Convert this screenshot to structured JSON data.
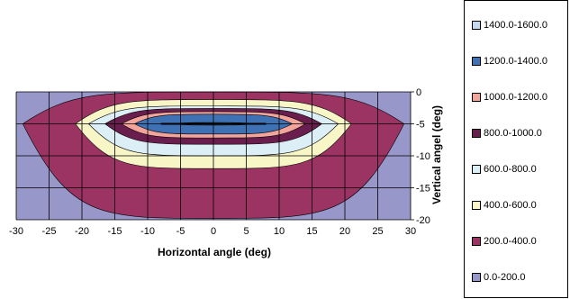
{
  "chart_data": {
    "type": "contour",
    "xlabel": "Horizontal angle (deg)",
    "ylabel": "Vertical angel (deg)",
    "xlim": [
      -30,
      30
    ],
    "ylim": [
      -20,
      0
    ],
    "x_ticks": [
      "-30",
      "-25",
      "-20",
      "-15",
      "-10",
      "-5",
      "0",
      "5",
      "10",
      "15",
      "20",
      "25",
      "30"
    ],
    "y_ticks": [
      "0",
      "-5",
      "-10",
      "-15",
      "-20"
    ],
    "grid": true,
    "legend_position": "right",
    "legend": [
      {
        "label": "1400.0-1600.0",
        "color": "#c6d9ef"
      },
      {
        "label": "1200.0-1400.0",
        "color": "#3f72b5"
      },
      {
        "label": "1000.0-1200.0",
        "color": "#f3a59b"
      },
      {
        "label": "800.0-1000.0",
        "color": "#6a1e4e"
      },
      {
        "label": "600.0-800.0",
        "color": "#ddeff6"
      },
      {
        "label": "400.0-600.0",
        "color": "#f8f5c7"
      },
      {
        "label": "200.0-400.0",
        "color": "#9b3462"
      },
      {
        "label": "0.0-200.0",
        "color": "#9797c9"
      }
    ],
    "contours": [
      {
        "band": "200.0-400.0",
        "center": [
          0,
          -5
        ],
        "half_width": 29,
        "top": 0,
        "bottom": -19.8
      },
      {
        "band": "400.0-600.0",
        "center": [
          0,
          -5
        ],
        "half_width": 21,
        "top": -1.2,
        "bottom": -12
      },
      {
        "band": "600.0-800.0",
        "center": [
          0,
          -5
        ],
        "half_width": 19,
        "top": -2.2,
        "bottom": -10
      },
      {
        "band": "800.0-1000.0",
        "center": [
          0,
          -5
        ],
        "half_width": 16.5,
        "top": -2.6,
        "bottom": -8.2
      },
      {
        "band": "1000.0-1200.0",
        "center": [
          0,
          -5
        ],
        "half_width": 14,
        "top": -3.1,
        "bottom": -7.2
      },
      {
        "band": "1200.0-1400.0",
        "center": [
          0,
          -5
        ],
        "half_width": 12,
        "top": -3.5,
        "bottom": -6.6
      },
      {
        "band": "1400.0-1600.0",
        "center": [
          0,
          -5
        ],
        "half_width": 6,
        "top": -4.8,
        "bottom": -5.2
      }
    ],
    "hot_line": {
      "x": [
        -8,
        8
      ],
      "y": -5
    }
  }
}
